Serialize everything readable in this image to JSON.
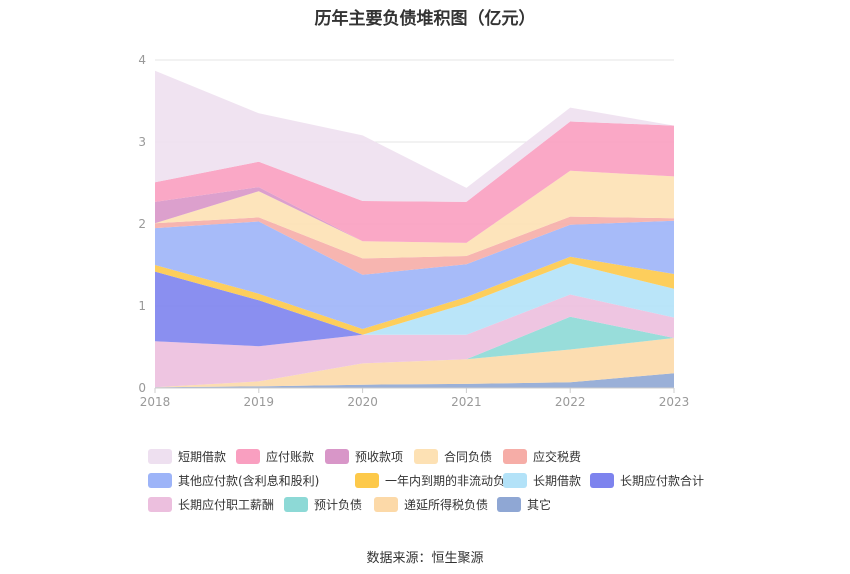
{
  "chart_data": {
    "type": "area",
    "stacked": true,
    "title": "历年主要负债堆积图（亿元）",
    "x": [
      "2018",
      "2019",
      "2020",
      "2021",
      "2022",
      "2023"
    ],
    "y_ticks": [
      "0",
      "1",
      "2",
      "3",
      "4"
    ],
    "ylim": [
      0,
      4
    ],
    "grid": true,
    "legend_position": "bottom",
    "series": [
      {
        "name": "其它",
        "color": "#8fa7d4",
        "values": [
          0.01,
          0.02,
          0.04,
          0.05,
          0.07,
          0.18
        ]
      },
      {
        "name": "递延所得税负债",
        "color": "#fcd9a8",
        "values": [
          0.0,
          0.06,
          0.26,
          0.3,
          0.4,
          0.43
        ]
      },
      {
        "name": "预计负债",
        "color": "#8dd9d6",
        "values": [
          0.0,
          0.0,
          0.0,
          0.0,
          0.4,
          0.0
        ]
      },
      {
        "name": "长期应付职工薪酬",
        "color": "#ecbfde",
        "values": [
          0.56,
          0.43,
          0.35,
          0.3,
          0.27,
          0.25
        ]
      },
      {
        "name": "长期应付款合计",
        "color": "#7d83ee",
        "values": [
          0.85,
          0.56,
          0.0,
          0.0,
          0.0,
          0.0
        ]
      },
      {
        "name": "长期借款",
        "color": "#b3e2f8",
        "values": [
          0.0,
          0.0,
          0.0,
          0.38,
          0.38,
          0.35
        ]
      },
      {
        "name": "一年内到期的非流动负债",
        "color": "#fdc94a",
        "values": [
          0.08,
          0.08,
          0.07,
          0.08,
          0.08,
          0.18
        ]
      },
      {
        "name": "其他应付款(含利息和股利)",
        "color": "#9db4f8",
        "values": [
          0.45,
          0.88,
          0.66,
          0.4,
          0.39,
          0.65
        ]
      },
      {
        "name": "应交税费",
        "color": "#f6ada7",
        "values": [
          0.06,
          0.05,
          0.2,
          0.1,
          0.1,
          0.03
        ]
      },
      {
        "name": "合同负债",
        "color": "#fde1b4",
        "values": [
          0.0,
          0.32,
          0.21,
          0.16,
          0.56,
          0.51
        ]
      },
      {
        "name": "预收款项",
        "color": "#d896c8",
        "values": [
          0.26,
          0.05,
          0.0,
          0.0,
          0.0,
          0.0
        ]
      },
      {
        "name": "应付账款",
        "color": "#f99fc0",
        "values": [
          0.24,
          0.31,
          0.49,
          0.5,
          0.6,
          0.62
        ]
      },
      {
        "name": "短期借款",
        "color": "#eee0f0",
        "values": [
          1.36,
          0.59,
          0.8,
          0.17,
          0.17,
          0.0
        ]
      }
    ],
    "legend_order": [
      "短期借款",
      "应付账款",
      "预收款项",
      "合同负债",
      "应交税费",
      "其他应付款(含利息和股利)",
      "一年内到期的非流动负债",
      "长期借款",
      "长期应付款合计",
      "长期应付职工薪酬",
      "预计负债",
      "递延所得税负债",
      "其它"
    ]
  },
  "source": "数据来源：恒生聚源"
}
